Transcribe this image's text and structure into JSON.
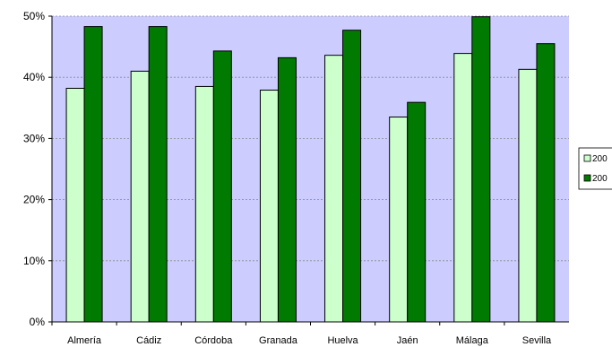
{
  "chart_data": {
    "type": "bar",
    "categories": [
      "Almería",
      "Cádiz",
      "Córdoba",
      "Granada",
      "Huelva",
      "Jaén",
      "Málaga",
      "Sevilla"
    ],
    "series": [
      {
        "name": "200",
        "color": "#ccffcc",
        "values": [
          38.2,
          41.0,
          38.5,
          37.9,
          43.6,
          33.5,
          43.9,
          41.3
        ]
      },
      {
        "name": "200",
        "color": "#007a00",
        "values": [
          48.3,
          48.3,
          44.3,
          43.2,
          47.7,
          35.9,
          49.9,
          45.5
        ]
      }
    ],
    "yticks": [
      "0%",
      "10%",
      "20%",
      "30%",
      "40%",
      "50%"
    ],
    "ylim": [
      0,
      50
    ],
    "plot_background": "#ccccff",
    "grid": true,
    "legend_position": "right",
    "title": "",
    "xlabel": "",
    "ylabel": ""
  }
}
